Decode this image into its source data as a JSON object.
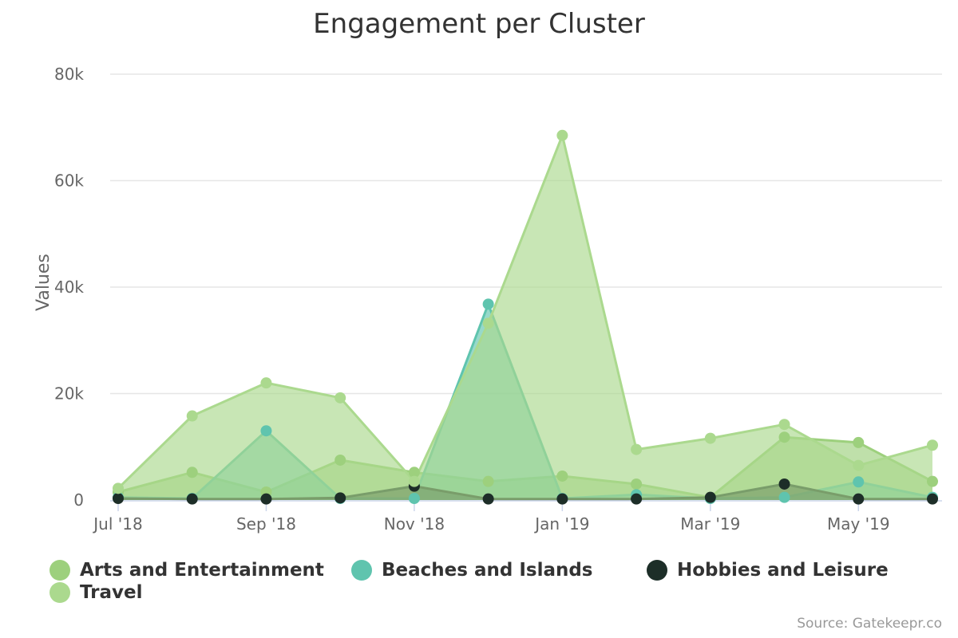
{
  "chart_data": {
    "type": "area",
    "title": "Engagement per Cluster",
    "ylabel": "Values",
    "xlabel": "",
    "ylim": [
      0,
      80000
    ],
    "yticks": [
      0,
      20000,
      40000,
      60000,
      80000
    ],
    "ytick_labels": [
      "0",
      "20k",
      "40k",
      "60k",
      "80k"
    ],
    "x": [
      "2018-07",
      "2018-08",
      "2018-09",
      "2018-10",
      "2018-11",
      "2018-12",
      "2019-01",
      "2019-02",
      "2019-03",
      "2019-04",
      "2019-05",
      "2019-06"
    ],
    "xtick_labels": [
      "Jul '18",
      "Sep '18",
      "Nov '18",
      "Jan '19",
      "Mar '19",
      "May '19"
    ],
    "grid": true,
    "legend_position": "bottom",
    "series": [
      {
        "name": "Arts and Entertainment",
        "color": "#9dd07d",
        "values": [
          1500,
          5200,
          1500,
          7500,
          5200,
          3500,
          4500,
          3000,
          500,
          11800,
          10800,
          3500
        ]
      },
      {
        "name": "Beaches and Islands",
        "color": "#5fc4ae",
        "values": [
          500,
          300,
          13000,
          300,
          300,
          36800,
          300,
          1000,
          300,
          500,
          3400,
          500
        ]
      },
      {
        "name": "Hobbies and Leisure",
        "color": "#1d2e28",
        "values": [
          300,
          200,
          200,
          400,
          2600,
          200,
          200,
          200,
          500,
          3000,
          200,
          200
        ]
      },
      {
        "name": "Travel",
        "color": "#abd98e",
        "values": [
          2200,
          15800,
          22000,
          19200,
          3500,
          33200,
          68500,
          9500,
          11600,
          14200,
          6500,
          10300
        ]
      }
    ]
  },
  "credits": "Source: Gatekeepr.co"
}
